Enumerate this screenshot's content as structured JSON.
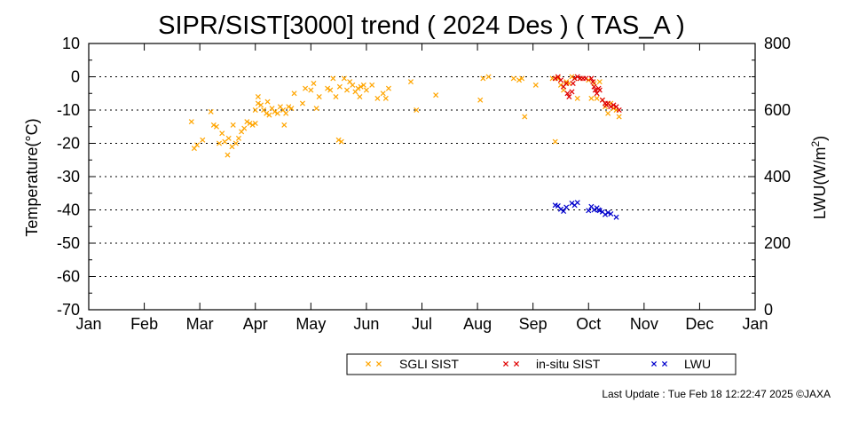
{
  "chart_data": {
    "type": "scatter",
    "title": "SIPR/SIST[3000] trend ( 2024 Des ) ( TAS_A )",
    "ylabel": "Temperature(°C)",
    "y2label_main": "LWU(W/m",
    "y2label_sup": "2",
    "y2label_end": ")",
    "ylim": [
      -70,
      10
    ],
    "y2lim": [
      0,
      800
    ],
    "yticks": [
      10,
      0,
      -10,
      -20,
      -30,
      -40,
      -50,
      -60,
      -70
    ],
    "y2ticks": [
      800,
      600,
      400,
      200,
      0
    ],
    "x_months": [
      "Jan",
      "Feb",
      "Mar",
      "Apr",
      "May",
      "Jun",
      "Jul",
      "Aug",
      "Sep",
      "Oct",
      "Nov",
      "Dec",
      "Jan"
    ],
    "xlim_months": [
      0,
      12
    ],
    "grid": "horizontal dotted",
    "legend_position": "bottom",
    "series": [
      {
        "name": "SGLI SIST",
        "color": "#ffa500",
        "axis": "left",
        "points": [
          [
            1.85,
            -13.5
          ],
          [
            1.9,
            -21.5
          ],
          [
            1.95,
            -20.5
          ],
          [
            2.05,
            -19
          ],
          [
            2.2,
            -10.5
          ],
          [
            2.25,
            -14.5
          ],
          [
            2.3,
            -15
          ],
          [
            2.35,
            -20
          ],
          [
            2.4,
            -17
          ],
          [
            2.45,
            -19.5
          ],
          [
            2.5,
            -23.5
          ],
          [
            2.52,
            -18.5
          ],
          [
            2.58,
            -21
          ],
          [
            2.6,
            -14.5
          ],
          [
            2.65,
            -20
          ],
          [
            2.7,
            -18.5
          ],
          [
            2.75,
            -16.5
          ],
          [
            2.8,
            -15.5
          ],
          [
            2.85,
            -13.5
          ],
          [
            2.9,
            -14
          ],
          [
            2.95,
            -14.5
          ],
          [
            3.0,
            -14
          ],
          [
            3.0,
            -10
          ],
          [
            3.05,
            -6
          ],
          [
            3.05,
            -8
          ],
          [
            3.1,
            -8.5
          ],
          [
            3.15,
            -10
          ],
          [
            3.2,
            -11
          ],
          [
            3.22,
            -7.5
          ],
          [
            3.25,
            -11.5
          ],
          [
            3.3,
            -9.5
          ],
          [
            3.35,
            -10.5
          ],
          [
            3.4,
            -11
          ],
          [
            3.45,
            -9
          ],
          [
            3.5,
            -10
          ],
          [
            3.52,
            -14.5
          ],
          [
            3.55,
            -11
          ],
          [
            3.6,
            -9
          ],
          [
            3.65,
            -9.5
          ],
          [
            3.7,
            -5
          ],
          [
            3.85,
            -8
          ],
          [
            3.9,
            -3.5
          ],
          [
            4.0,
            -4
          ],
          [
            4.05,
            -2
          ],
          [
            4.1,
            -9.5
          ],
          [
            4.15,
            -6
          ],
          [
            4.3,
            -3.5
          ],
          [
            4.35,
            -4
          ],
          [
            4.4,
            -0.5
          ],
          [
            4.45,
            -6
          ],
          [
            4.5,
            -19
          ],
          [
            4.52,
            -3
          ],
          [
            4.55,
            -19.5
          ],
          [
            4.6,
            -0.5
          ],
          [
            4.65,
            -4
          ],
          [
            4.7,
            -1.5
          ],
          [
            4.75,
            -2.5
          ],
          [
            4.8,
            -4.5
          ],
          [
            4.85,
            -3.5
          ],
          [
            4.88,
            -6
          ],
          [
            4.9,
            -3
          ],
          [
            4.95,
            -2.5
          ],
          [
            5.0,
            -4
          ],
          [
            5.1,
            -2.5
          ],
          [
            5.2,
            -6.5
          ],
          [
            5.3,
            -5
          ],
          [
            5.35,
            -6.5
          ],
          [
            5.4,
            -3.5
          ],
          [
            5.8,
            -1.5
          ],
          [
            5.9,
            -10
          ],
          [
            6.25,
            -5.5
          ],
          [
            7.05,
            -7
          ],
          [
            7.1,
            -0.5
          ],
          [
            7.2,
            0
          ],
          [
            7.65,
            -0.5
          ],
          [
            7.75,
            -1
          ],
          [
            7.8,
            -0.5
          ],
          [
            7.85,
            -12
          ],
          [
            8.05,
            -2.5
          ],
          [
            8.35,
            -0.5
          ],
          [
            8.4,
            -19.5
          ],
          [
            8.45,
            -0.5
          ],
          [
            8.5,
            -2.5
          ],
          [
            8.55,
            -4
          ],
          [
            8.6,
            -1.5
          ],
          [
            8.65,
            -2
          ],
          [
            8.7,
            0
          ],
          [
            8.75,
            -0.5
          ],
          [
            8.8,
            -6.5
          ],
          [
            8.85,
            -0.5
          ],
          [
            9.0,
            -1
          ],
          [
            9.05,
            -6.5
          ],
          [
            9.1,
            -2
          ],
          [
            9.15,
            -6.5
          ],
          [
            9.2,
            -1.5
          ],
          [
            9.25,
            -7
          ],
          [
            9.3,
            -9
          ],
          [
            9.35,
            -11
          ],
          [
            9.4,
            -8
          ],
          [
            9.45,
            -9.5
          ],
          [
            9.5,
            -10
          ],
          [
            9.55,
            -12
          ]
        ]
      },
      {
        "name": "in-situ SIST",
        "color": "#e00000",
        "axis": "left",
        "points": [
          [
            8.4,
            -0.5
          ],
          [
            8.45,
            0
          ],
          [
            8.5,
            -1
          ],
          [
            8.55,
            -3
          ],
          [
            8.6,
            -2
          ],
          [
            8.62,
            -5
          ],
          [
            8.65,
            -6
          ],
          [
            8.7,
            -4.5
          ],
          [
            8.72,
            -2
          ],
          [
            8.75,
            -0.5
          ],
          [
            8.8,
            0
          ],
          [
            8.85,
            -0.5
          ],
          [
            8.9,
            -0.5
          ],
          [
            8.95,
            -0.5
          ],
          [
            9.05,
            -0.5
          ],
          [
            9.08,
            -1.5
          ],
          [
            9.1,
            -3
          ],
          [
            9.12,
            -4
          ],
          [
            9.15,
            -5
          ],
          [
            9.18,
            -3.5
          ],
          [
            9.2,
            -4
          ],
          [
            9.25,
            -7
          ],
          [
            9.3,
            -8
          ],
          [
            9.32,
            -8.5
          ],
          [
            9.35,
            -8
          ],
          [
            9.4,
            -9
          ],
          [
            9.45,
            -8.5
          ],
          [
            9.5,
            -9
          ],
          [
            9.55,
            -10
          ]
        ]
      },
      {
        "name": "LWU",
        "color": "#0000cc",
        "axis": "right",
        "points": [
          [
            8.4,
            314
          ],
          [
            8.45,
            312
          ],
          [
            8.5,
            302
          ],
          [
            8.55,
            296
          ],
          [
            8.6,
            308
          ],
          [
            8.7,
            320
          ],
          [
            8.75,
            314
          ],
          [
            8.8,
            322
          ],
          [
            9.0,
            298
          ],
          [
            9.05,
            310
          ],
          [
            9.1,
            300
          ],
          [
            9.15,
            306
          ],
          [
            9.18,
            300
          ],
          [
            9.2,
            298
          ],
          [
            9.25,
            294
          ],
          [
            9.3,
            286
          ],
          [
            9.35,
            292
          ],
          [
            9.4,
            288
          ],
          [
            9.5,
            278
          ]
        ]
      }
    ]
  },
  "footer": {
    "last_update": "Last Update : Tue Feb 18 12:22:47 2025  ©JAXA"
  }
}
